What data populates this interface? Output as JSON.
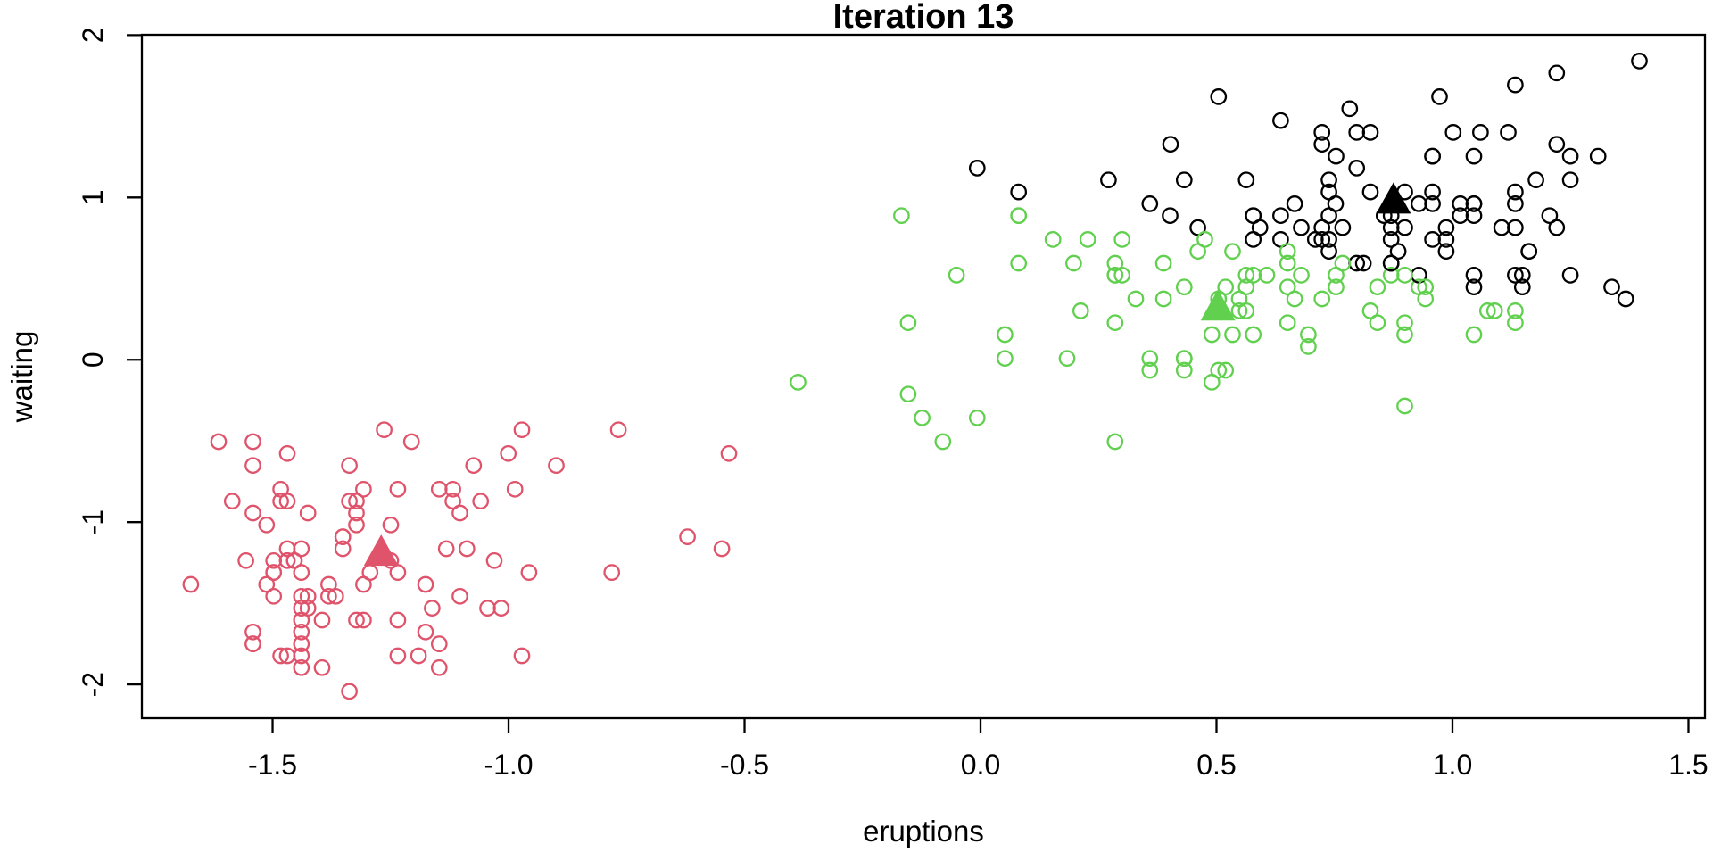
{
  "figure": {
    "title": "Iteration 13"
  },
  "chart_data": {
    "type": "scatter",
    "title": "Iteration 13",
    "xlabel": "eruptions",
    "ylabel": "waiting",
    "standardized": true,
    "grid": false,
    "legend": "none",
    "xlim": [
      -1.777,
      1.535
    ],
    "ylim": [
      -2.208,
      2.002
    ],
    "x_ticks": [
      -1.5,
      -1.0,
      -0.5,
      0.0,
      0.5,
      1.0,
      1.5
    ],
    "x_tick_labels": [
      "-1.5",
      "-1.0",
      "-0.5",
      "0.0",
      "0.5",
      "1.0",
      "1.5"
    ],
    "y_ticks": [
      -2,
      -1,
      0,
      1,
      2
    ],
    "y_tick_labels": [
      "-2",
      "-1",
      "0",
      "1",
      "2"
    ],
    "marker": {
      "shape": "open-circle",
      "radius": 8.2,
      "stroke_width": 2.3
    },
    "centroid_marker": {
      "shape": "filled-triangle",
      "half_width": 19.5,
      "above": 21,
      "below": 14
    },
    "axis_color": "#000000",
    "centroids": [
      {
        "cluster": "black",
        "color": "#000000",
        "x": 0.875,
        "y": 0.978
      },
      {
        "cluster": "red",
        "color": "#DF536B",
        "x": -1.27,
        "y": -1.192
      },
      {
        "cluster": "green",
        "color": "#61D04F",
        "x": 0.503,
        "y": 0.319
      }
    ],
    "points": [
      [
        3.6,
        79
      ],
      [
        1.8,
        54
      ],
      [
        3.333,
        74
      ],
      [
        2.283,
        62
      ],
      [
        4.533,
        85
      ],
      [
        2.883,
        55
      ],
      [
        4.7,
        88
      ],
      [
        3.6,
        85
      ],
      [
        1.95,
        51
      ],
      [
        4.35,
        85
      ],
      [
        1.833,
        54
      ],
      [
        3.917,
        84
      ],
      [
        4.2,
        78
      ],
      [
        1.75,
        47
      ],
      [
        4.7,
        83
      ],
      [
        2.167,
        52
      ],
      [
        1.75,
        62
      ],
      [
        4.8,
        84
      ],
      [
        1.6,
        52
      ],
      [
        4.25,
        79
      ],
      [
        1.8,
        51
      ],
      [
        1.75,
        47
      ],
      [
        3.45,
        78
      ],
      [
        3.067,
        69
      ],
      [
        4.533,
        74
      ],
      [
        3.6,
        83
      ],
      [
        1.967,
        55
      ],
      [
        4.083,
        76
      ],
      [
        3.85,
        78
      ],
      [
        4.433,
        79
      ],
      [
        4.3,
        73
      ],
      [
        4.467,
        77
      ],
      [
        3.367,
        66
      ],
      [
        4.033,
        80
      ],
      [
        3.833,
        74
      ],
      [
        2.017,
        52
      ],
      [
        1.867,
        48
      ],
      [
        4.833,
        80
      ],
      [
        1.833,
        59
      ],
      [
        4.783,
        90
      ],
      [
        4.35,
        80
      ],
      [
        1.883,
        58
      ],
      [
        4.567,
        84
      ],
      [
        1.75,
        58
      ],
      [
        4.533,
        73
      ],
      [
        3.317,
        83
      ],
      [
        3.833,
        64
      ],
      [
        2.1,
        53
      ],
      [
        4.633,
        82
      ],
      [
        2.0,
        59
      ],
      [
        4.8,
        75
      ],
      [
        4.716,
        90
      ],
      [
        1.833,
        54
      ],
      [
        4.833,
        80
      ],
      [
        1.733,
        54
      ],
      [
        4.883,
        83
      ],
      [
        3.717,
        71
      ],
      [
        1.667,
        64
      ],
      [
        4.567,
        77
      ],
      [
        4.317,
        81
      ],
      [
        2.233,
        59
      ],
      [
        4.5,
        84
      ],
      [
        1.75,
        48
      ],
      [
        4.8,
        82
      ],
      [
        1.817,
        60
      ],
      [
        4.4,
        92
      ],
      [
        4.167,
        78
      ],
      [
        4.7,
        78
      ],
      [
        2.067,
        65
      ],
      [
        4.7,
        73
      ],
      [
        4.033,
        82
      ],
      [
        1.967,
        56
      ],
      [
        4.5,
        79
      ],
      [
        4.0,
        71
      ],
      [
        1.983,
        62
      ],
      [
        5.067,
        76
      ],
      [
        2.017,
        60
      ],
      [
        4.567,
        78
      ],
      [
        3.883,
        76
      ],
      [
        3.6,
        83
      ],
      [
        4.133,
        75
      ],
      [
        4.333,
        82
      ],
      [
        4.1,
        70
      ],
      [
        2.633,
        65
      ],
      [
        4.067,
        73
      ],
      [
        4.933,
        88
      ],
      [
        3.95,
        76
      ],
      [
        4.517,
        80
      ],
      [
        2.167,
        48
      ],
      [
        4.0,
        86
      ],
      [
        2.2,
        60
      ],
      [
        4.333,
        90
      ],
      [
        1.867,
        50
      ],
      [
        4.817,
        78
      ],
      [
        1.833,
        63
      ],
      [
        4.3,
        72
      ],
      [
        4.667,
        84
      ],
      [
        3.75,
        75
      ],
      [
        1.867,
        51
      ],
      [
        4.9,
        82
      ],
      [
        2.483,
        62
      ],
      [
        4.367,
        88
      ],
      [
        2.1,
        49
      ],
      [
        4.5,
        83
      ],
      [
        4.05,
        81
      ],
      [
        1.867,
        47
      ],
      [
        4.7,
        84
      ],
      [
        1.783,
        52
      ],
      [
        4.85,
        86
      ],
      [
        3.683,
        81
      ],
      [
        4.733,
        75
      ],
      [
        2.3,
        59
      ],
      [
        4.9,
        89
      ],
      [
        4.417,
        79
      ],
      [
        1.7,
        59
      ],
      [
        4.633,
        81
      ],
      [
        2.317,
        50
      ],
      [
        4.6,
        85
      ],
      [
        1.817,
        59
      ],
      [
        4.417,
        87
      ],
      [
        2.617,
        53
      ],
      [
        4.067,
        69
      ],
      [
        4.25,
        77
      ],
      [
        1.967,
        56
      ],
      [
        4.6,
        88
      ],
      [
        3.767,
        81
      ],
      [
        1.917,
        45
      ],
      [
        4.5,
        82
      ],
      [
        2.267,
        55
      ],
      [
        4.65,
        90
      ],
      [
        1.867,
        45
      ],
      [
        4.167,
        83
      ],
      [
        2.8,
        56
      ],
      [
        4.333,
        89
      ],
      [
        1.833,
        46
      ],
      [
        4.383,
        82
      ],
      [
        1.883,
        51
      ],
      [
        4.933,
        86
      ],
      [
        2.033,
        53
      ],
      [
        3.733,
        79
      ],
      [
        4.233,
        81
      ],
      [
        2.233,
        60
      ],
      [
        4.533,
        82
      ],
      [
        4.817,
        77
      ],
      [
        4.333,
        76
      ],
      [
        1.983,
        59
      ],
      [
        4.633,
        80
      ],
      [
        2.017,
        49
      ],
      [
        5.1,
        96
      ],
      [
        1.8,
        53
      ],
      [
        5.033,
        77
      ],
      [
        4.0,
        77
      ],
      [
        2.4,
        65
      ],
      [
        4.6,
        81
      ],
      [
        3.567,
        71
      ],
      [
        4.0,
        70
      ],
      [
        4.5,
        81
      ],
      [
        4.083,
        93
      ],
      [
        1.8,
        53
      ],
      [
        3.967,
        89
      ],
      [
        2.2,
        45
      ],
      [
        4.15,
        86
      ],
      [
        2.0,
        58
      ],
      [
        3.833,
        78
      ],
      [
        3.5,
        66
      ],
      [
        4.583,
        76
      ],
      [
        2.367,
        63
      ],
      [
        5.0,
        88
      ],
      [
        1.933,
        52
      ],
      [
        4.617,
        93
      ],
      [
        1.917,
        49
      ],
      [
        2.083,
        57
      ],
      [
        4.583,
        77
      ],
      [
        3.333,
        68
      ],
      [
        4.167,
        81
      ],
      [
        4.333,
        81
      ],
      [
        4.167,
        73
      ],
      [
        2.183,
        50
      ],
      [
        4.8,
        85
      ],
      [
        4.8,
        74
      ],
      [
        1.833,
        55
      ],
      [
        4.1,
        77
      ],
      [
        3.966,
        83
      ],
      [
        4.233,
        83
      ],
      [
        2.25,
        51
      ],
      [
        4.5,
        78
      ],
      [
        4.366,
        84
      ],
      [
        2.1,
        46
      ],
      [
        4.667,
        83
      ],
      [
        1.867,
        55
      ],
      [
        4.35,
        81
      ],
      [
        1.783,
        57
      ],
      [
        4.133,
        76
      ],
      [
        4.6,
        84
      ],
      [
        4.367,
        77
      ],
      [
        3.85,
        81
      ],
      [
        3.5,
        87
      ],
      [
        4.7,
        77
      ],
      [
        1.933,
        51
      ],
      [
        3.833,
        78
      ],
      [
        2.383,
        60
      ],
      [
        3.417,
        64
      ],
      [
        4.233,
        91
      ],
      [
        1.867,
        53
      ],
      [
        4.8,
        78
      ],
      [
        2.4,
        46
      ],
      [
        4.15,
        77
      ],
      [
        4.267,
        84
      ],
      [
        2.0,
        49
      ],
      [
        4.483,
        83
      ],
      [
        4.0,
        71
      ],
      [
        4.117,
        80
      ],
      [
        1.867,
        49
      ],
      [
        4.083,
        75
      ],
      [
        1.75,
        64
      ],
      [
        4.267,
        76
      ],
      [
        2.417,
        53
      ],
      [
        4.8,
        94
      ],
      [
        2.217,
        55
      ],
      [
        4.083,
        76
      ],
      [
        1.883,
        50
      ],
      [
        4.183,
        82
      ],
      [
        1.85,
        54
      ],
      [
        4.45,
        75
      ],
      [
        4.283,
        78
      ],
      [
        3.95,
        79
      ],
      [
        4.15,
        78
      ],
      [
        4.933,
        78
      ],
      [
        4.083,
        70
      ],
      [
        3.833,
        79
      ],
      [
        4.367,
        78
      ],
      [
        2.333,
        54
      ],
      [
        4.35,
        86
      ],
      [
        2.35,
        50
      ],
      [
        4.45,
        90
      ],
      [
        2.9,
        63
      ],
      [
        2.083,
        54
      ],
      [
        3.567,
        73
      ],
      [
        4.5,
        79
      ],
      [
        2.133,
        64
      ],
      [
        4.15,
        75
      ],
      [
        2.2,
        47
      ],
      [
        3.817,
        86
      ],
      [
        3.917,
        70
      ],
      [
        4.45,
        85
      ],
      [
        4.283,
        82
      ],
      [
        2.0,
        57
      ],
      [
        4.767,
        82
      ],
      [
        4.533,
        67
      ],
      [
        4.25,
        74
      ],
      [
        1.85,
        54
      ],
      [
        4.75,
        75
      ],
      [
        4.117,
        73
      ],
      [
        3.917,
        71
      ],
      [
        4.6,
        88
      ],
      [
        4.25,
        80
      ],
      [
        4.0,
        71
      ],
      [
        4.35,
        83
      ],
      [
        2.15,
        46
      ],
      [
        4.383,
        79
      ],
      [
        4.533,
        78
      ],
      [
        4.7,
        84
      ],
      [
        2.25,
        58
      ],
      [
        4.167,
        83
      ],
      [
        1.983,
        43
      ],
      [
        2.1,
        60
      ],
      [
        4.083,
        75
      ],
      [
        4.9,
        95
      ],
      [
        1.867,
        46
      ],
      [
        4.417,
        90
      ],
      [
        1.817,
        46
      ],
      [
        4.467,
        74
      ]
    ]
  }
}
